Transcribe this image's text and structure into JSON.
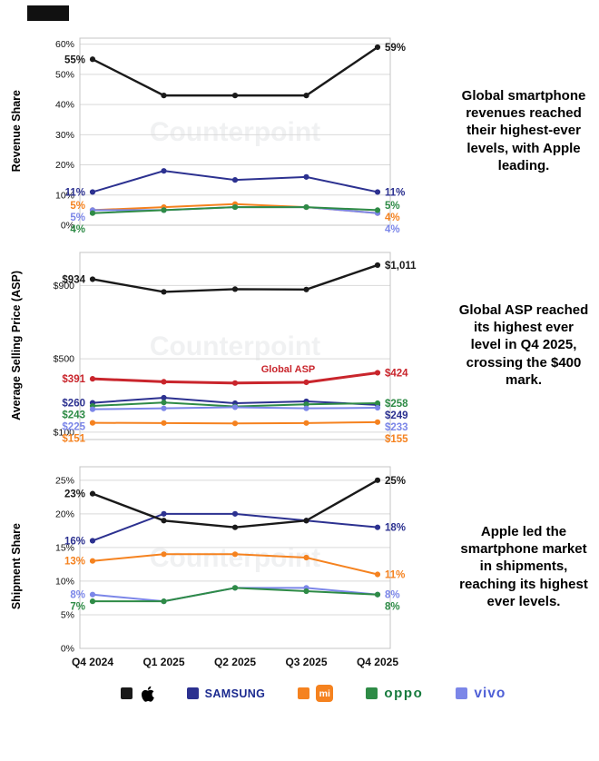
{
  "watermark": "Counterpoint",
  "chart_data": [
    {
      "type": "line",
      "ylabel": "Revenue Share",
      "annotation": "Global smartphone revenues reached their highest-ever levels, with Apple leading.",
      "categories": [
        "Q4 2024",
        "Q1 2025",
        "Q2 2025",
        "Q3 2025",
        "Q4 2025"
      ],
      "ymin": 0,
      "ymax": 62,
      "show_x_labels": false,
      "yticks": [
        {
          "v": 0,
          "label": "0%"
        },
        {
          "v": 10,
          "label": "10%"
        },
        {
          "v": 20,
          "label": "20%"
        },
        {
          "v": 30,
          "label": "30%"
        },
        {
          "v": 40,
          "label": "40%"
        },
        {
          "v": 50,
          "label": "50%"
        },
        {
          "v": 60,
          "label": "60%"
        }
      ],
      "series": [
        {
          "name": "Samsung",
          "color": "#2c3190",
          "width": 2,
          "values": [
            11,
            18,
            15,
            16,
            11
          ],
          "left_label": "11%",
          "right_label": "11%"
        },
        {
          "name": "Xiaomi",
          "color": "#f5821f",
          "width": 2,
          "values": [
            5,
            6,
            7,
            6,
            4
          ],
          "left_label": "5%",
          "right_label": "4%"
        },
        {
          "name": "vivo",
          "color": "#7b86e8",
          "width": 2,
          "values": [
            5,
            5,
            6,
            6,
            4
          ],
          "left_label": "5%",
          "right_label": "4%"
        },
        {
          "name": "OPPO",
          "color": "#2e8b46",
          "width": 2,
          "values": [
            4,
            5,
            6,
            6,
            5
          ],
          "left_label": "4%",
          "right_label": "5%"
        },
        {
          "name": "Apple",
          "color": "#1a1a1a",
          "width": 2.4,
          "values": [
            55,
            43,
            43,
            43,
            59
          ],
          "left_label": "55%",
          "right_label": "59%"
        }
      ]
    },
    {
      "type": "line",
      "ylabel": "Average Selling Price (ASP)",
      "annotation": "Global ASP reached its highest ever level in Q4 2025, crossing the $400 mark.",
      "categories": [
        "Q4 2024",
        "Q1 2025",
        "Q2 2025",
        "Q3 2025",
        "Q4 2025"
      ],
      "ymin": 60,
      "ymax": 1080,
      "show_x_labels": false,
      "yticks": [
        {
          "v": 100,
          "label": "$100"
        },
        {
          "v": 500,
          "label": "$500"
        },
        {
          "v": 900,
          "label": "$900"
        }
      ],
      "series": [
        {
          "name": "Samsung",
          "color": "#2c3190",
          "width": 2,
          "values": [
            260,
            288,
            258,
            268,
            249
          ],
          "left_label": "$260",
          "right_label": "$249"
        },
        {
          "name": "OPPO",
          "color": "#2e8b46",
          "width": 2,
          "values": [
            243,
            262,
            240,
            252,
            258
          ],
          "left_label": "$243",
          "right_label": "$258"
        },
        {
          "name": "vivo",
          "color": "#7b86e8",
          "width": 2,
          "values": [
            225,
            230,
            236,
            230,
            233
          ],
          "left_label": "$225",
          "right_label": "$233"
        },
        {
          "name": "Xiaomi",
          "color": "#f5821f",
          "width": 2,
          "values": [
            151,
            150,
            148,
            150,
            155
          ],
          "left_label": "$151",
          "right_label": "$155"
        },
        {
          "name": "Global ASP",
          "color": "#c9252c",
          "width": 3,
          "values": [
            391,
            375,
            368,
            372,
            424
          ],
          "left_label": "$391",
          "right_label": "$424",
          "inline_label": "Global ASP"
        },
        {
          "name": "Apple",
          "color": "#1a1a1a",
          "width": 2.4,
          "values": [
            934,
            865,
            880,
            878,
            1011
          ],
          "left_label": "$934",
          "right_label": "$1,011"
        }
      ]
    },
    {
      "type": "line",
      "ylabel": "Shipment Share",
      "annotation": "Apple led the smartphone market in shipments, reaching its highest ever levels.",
      "categories": [
        "Q4 2024",
        "Q1 2025",
        "Q2 2025",
        "Q3 2025",
        "Q4 2025"
      ],
      "ymin": 0,
      "ymax": 27,
      "show_x_labels": true,
      "yticks": [
        {
          "v": 0,
          "label": "0%"
        },
        {
          "v": 5,
          "label": "5%"
        },
        {
          "v": 10,
          "label": "10%"
        },
        {
          "v": 15,
          "label": "15%"
        },
        {
          "v": 20,
          "label": "20%"
        },
        {
          "v": 25,
          "label": "25%"
        }
      ],
      "series": [
        {
          "name": "Samsung",
          "color": "#2c3190",
          "width": 2,
          "values": [
            16,
            20,
            20,
            19,
            18
          ],
          "left_label": "16%",
          "right_label": "18%"
        },
        {
          "name": "Xiaomi",
          "color": "#f5821f",
          "width": 2,
          "values": [
            13,
            14,
            14,
            13.5,
            11
          ],
          "left_label": "13%",
          "right_label": "11%"
        },
        {
          "name": "vivo",
          "color": "#7b86e8",
          "width": 2,
          "values": [
            8,
            7,
            9,
            9,
            8
          ],
          "left_label": "8%",
          "right_label": "8%"
        },
        {
          "name": "OPPO",
          "color": "#2e8b46",
          "width": 2,
          "values": [
            7,
            7,
            9,
            8.5,
            8
          ],
          "left_label": "7%",
          "right_label": "8%"
        },
        {
          "name": "Apple",
          "color": "#1a1a1a",
          "width": 2.4,
          "values": [
            23,
            19,
            18,
            19,
            25
          ],
          "left_label": "23%",
          "right_label": "25%"
        }
      ]
    }
  ],
  "legend": {
    "items": [
      {
        "label": "Apple",
        "swatch": "#1a1a1a",
        "color": "#000000",
        "type": "apple"
      },
      {
        "label": "SAMSUNG",
        "swatch": "#2c3190",
        "color": "#1b2a8f",
        "type": "text"
      },
      {
        "label": "mi",
        "swatch": "#f5821f",
        "color": "#f5821f",
        "type": "mi"
      },
      {
        "label": "oppo",
        "swatch": "#2e8b46",
        "color": "#157a3c",
        "type": "text"
      },
      {
        "label": "vivo",
        "swatch": "#7b86e8",
        "color": "#4e5fd6",
        "type": "text"
      }
    ]
  }
}
